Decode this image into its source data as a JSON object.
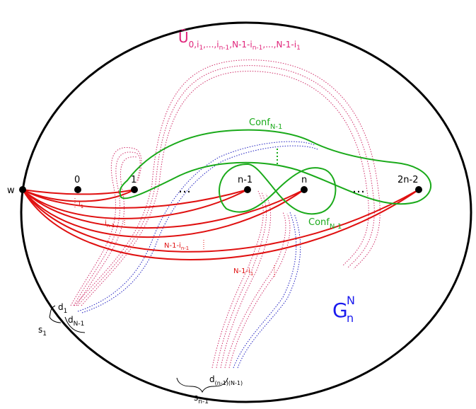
{
  "labels": {
    "w": "w",
    "p0": "0",
    "p1": "1",
    "dots_left": "…",
    "pn1": "n-1",
    "pn": "n",
    "dots_right": "…",
    "p2n2": "2n-2",
    "conf_top": {
      "base": "Conf",
      "sub": "N-1"
    },
    "conf_bottom": {
      "base": "Conf",
      "sub": "N-1"
    },
    "ubar": {
      "base": "Ū",
      "sub": "0,i",
      "sub2": "1",
      "tail": ",...,i",
      "sub3": "n-1",
      "tail2": ",N-1-i",
      "sub4": "n-1",
      "tail3": ",...,N-1-i",
      "sub5": "1"
    },
    "i1": {
      "base": "i",
      "sub": "1"
    },
    "in1": {
      "base": "i",
      "sub": "n-1"
    },
    "N1in1": {
      "base": "N-1-i",
      "sub": "n-1"
    },
    "N1i1": {
      "base": "N-1-i",
      "sub": "1"
    },
    "d1": {
      "base": "d",
      "sub": "1"
    },
    "dN1": {
      "base": "d",
      "sub": "N-1"
    },
    "s1": {
      "base": "s",
      "sub": "1"
    },
    "dn1N1": {
      "base": "d",
      "sub": "(n-1)(N-1)"
    },
    "sn1": {
      "base": "s",
      "sub": "n-1"
    },
    "G": {
      "base": "G",
      "sup": "N",
      "sub": "n"
    }
  },
  "colors": {
    "outline": "#000000",
    "strands": "#e01010",
    "conf": "#1aaa1a",
    "ubar": "#e0247a",
    "dotted_pink": "#d0306a",
    "dotted_blue": "#2020c0",
    "G": "#1a1aee"
  }
}
